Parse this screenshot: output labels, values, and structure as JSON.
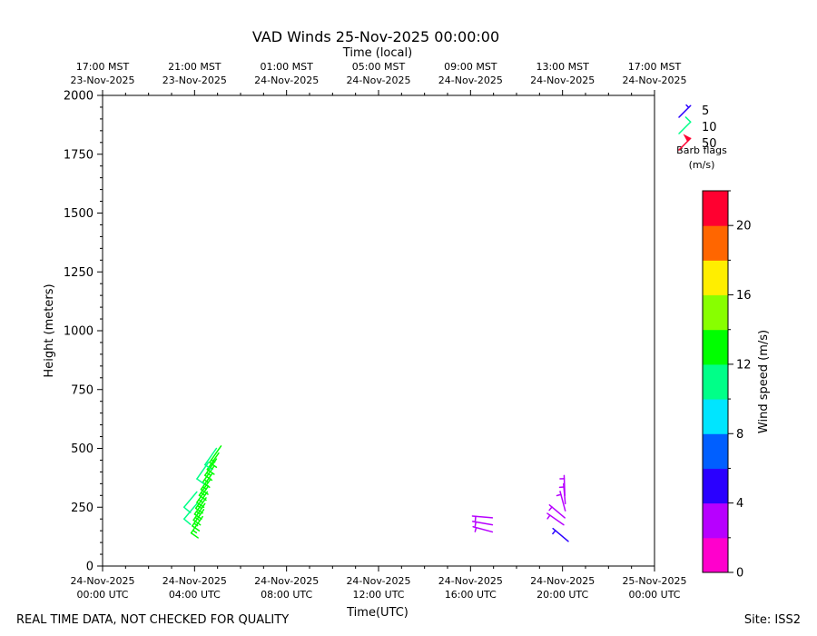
{
  "chart_data": {
    "type": "wind-barb",
    "title": "VAD Winds 25-Nov-2025 00:00:00",
    "top_axis_label": "Time (local)",
    "xlabel": "Time(UTC)",
    "ylabel": "Height (meters)",
    "ylim": [
      0,
      2000
    ],
    "xlim_hours_utc": [
      0,
      24
    ],
    "y_ticks": [
      "0",
      "250",
      "500",
      "750",
      "1000",
      "1250",
      "1500",
      "1750",
      "2000"
    ],
    "bottom_ticks": [
      {
        "h": 0,
        "l1": "24-Nov-2025",
        "l2": "00:00 UTC"
      },
      {
        "h": 4,
        "l1": "24-Nov-2025",
        "l2": "04:00 UTC"
      },
      {
        "h": 8,
        "l1": "24-Nov-2025",
        "l2": "08:00 UTC"
      },
      {
        "h": 12,
        "l1": "24-Nov-2025",
        "l2": "12:00 UTC"
      },
      {
        "h": 16,
        "l1": "24-Nov-2025",
        "l2": "16:00 UTC"
      },
      {
        "h": 20,
        "l1": "24-Nov-2025",
        "l2": "20:00 UTC"
      },
      {
        "h": 24,
        "l1": "25-Nov-2025",
        "l2": "00:00 UTC"
      }
    ],
    "top_ticks": [
      {
        "h": 0,
        "l1": "17:00 MST",
        "l2": "23-Nov-2025"
      },
      {
        "h": 4,
        "l1": "21:00 MST",
        "l2": "23-Nov-2025"
      },
      {
        "h": 8,
        "l1": "01:00 MST",
        "l2": "24-Nov-2025"
      },
      {
        "h": 12,
        "l1": "05:00 MST",
        "l2": "24-Nov-2025"
      },
      {
        "h": 16,
        "l1": "09:00 MST",
        "l2": "24-Nov-2025"
      },
      {
        "h": 20,
        "l1": "13:00 MST",
        "l2": "24-Nov-2025"
      },
      {
        "h": 24,
        "l1": "17:00 MST",
        "l2": "24-Nov-2025"
      }
    ],
    "barbs": [
      {
        "t": 4.35,
        "h": 210,
        "speed": 13,
        "dir": 215
      },
      {
        "t": 4.4,
        "h": 240,
        "speed": 13,
        "dir": 215
      },
      {
        "t": 4.45,
        "h": 265,
        "speed": 13,
        "dir": 215
      },
      {
        "t": 4.5,
        "h": 290,
        "speed": 13,
        "dir": 215
      },
      {
        "t": 4.55,
        "h": 315,
        "speed": 13,
        "dir": 215
      },
      {
        "t": 4.6,
        "h": 340,
        "speed": 13,
        "dir": 215
      },
      {
        "t": 4.7,
        "h": 370,
        "speed": 13,
        "dir": 215
      },
      {
        "t": 4.78,
        "h": 395,
        "speed": 13,
        "dir": 215
      },
      {
        "t": 4.85,
        "h": 425,
        "speed": 13,
        "dir": 215
      },
      {
        "t": 4.95,
        "h": 455,
        "speed": 13,
        "dir": 215
      },
      {
        "t": 5.05,
        "h": 480,
        "speed": 13,
        "dir": 215
      },
      {
        "t": 5.15,
        "h": 510,
        "speed": 13,
        "dir": 215
      },
      {
        "t": 4.1,
        "h": 265,
        "speed": 10,
        "dir": 220
      },
      {
        "t": 4.1,
        "h": 315,
        "speed": 10,
        "dir": 220
      },
      {
        "t": 4.6,
        "h": 440,
        "speed": 11,
        "dir": 215
      },
      {
        "t": 4.95,
        "h": 500,
        "speed": 11,
        "dir": 215
      },
      {
        "t": 16.95,
        "h": 145,
        "speed": 3,
        "dir": 285
      },
      {
        "t": 16.95,
        "h": 175,
        "speed": 3,
        "dir": 280
      },
      {
        "t": 16.95,
        "h": 205,
        "speed": 3,
        "dir": 275
      },
      {
        "t": 20.05,
        "h": 175,
        "speed": 3,
        "dir": 305
      },
      {
        "t": 20.1,
        "h": 205,
        "speed": 3,
        "dir": 310
      },
      {
        "t": 20.12,
        "h": 235,
        "speed": 3,
        "dir": 345
      },
      {
        "t": 20.12,
        "h": 265,
        "speed": 3,
        "dir": 355
      },
      {
        "t": 20.1,
        "h": 300,
        "speed": 3,
        "dir": 358
      },
      {
        "t": 20.25,
        "h": 105,
        "speed": 5,
        "dir": 310
      }
    ],
    "barb_legend": {
      "items": [
        {
          "label": "5",
          "speed": 5,
          "color": "#2a00ff"
        },
        {
          "label": "10",
          "speed": 10,
          "color": "#00ff88"
        },
        {
          "label": "50",
          "speed": 50,
          "color": "#ff0030"
        }
      ],
      "title_line1": "Barb flags",
      "title_line2": "(m/s)"
    },
    "colorbar": {
      "label": "Wind speed (m/s)",
      "range": [
        0,
        22
      ],
      "ticks": [
        "0",
        "4",
        "8",
        "12",
        "16",
        "20"
      ],
      "colors": [
        "#ff00cc",
        "#b700ff",
        "#2a00ff",
        "#005fff",
        "#00e5ff",
        "#00ff88",
        "#00ff00",
        "#88ff00",
        "#ffee00",
        "#ff6600",
        "#ff0030"
      ]
    }
  },
  "footer": {
    "note": "REAL TIME DATA, NOT CHECKED FOR QUALITY",
    "site": "Site: ISS2"
  }
}
